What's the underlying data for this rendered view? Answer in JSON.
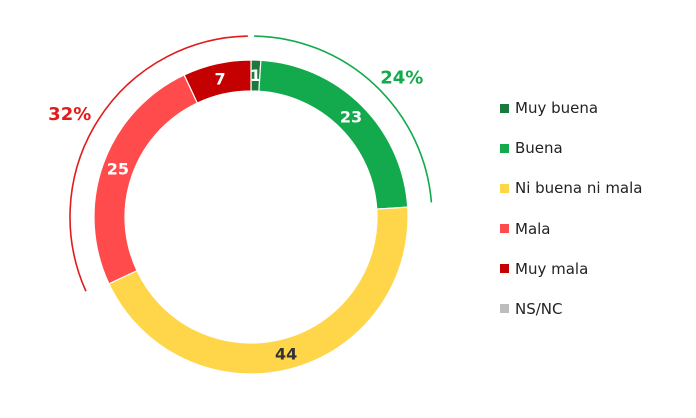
{
  "chart_data": {
    "type": "pie",
    "title": "",
    "categories": [
      "Muy buena",
      "Buena",
      "Ni buena ni mala",
      "Mala",
      "Muy mala",
      "NS/NC"
    ],
    "values": [
      1,
      23,
      44,
      25,
      7,
      0
    ],
    "colors": [
      "#1a7a3c",
      "#12aa4c",
      "#ffd54a",
      "#ff4b4b",
      "#c40000",
      "#bdbdbd"
    ],
    "label_colors": [
      "#ffffff",
      "#ffffff",
      "#333333",
      "#ffffff",
      "#ffffff",
      "#ffffff"
    ],
    "groups": [
      {
        "label": "24%",
        "color": "#12aa4c"
      },
      {
        "label": "32%",
        "color": "#e01b1b"
      }
    ],
    "legend_position": "right",
    "style": "donut"
  }
}
